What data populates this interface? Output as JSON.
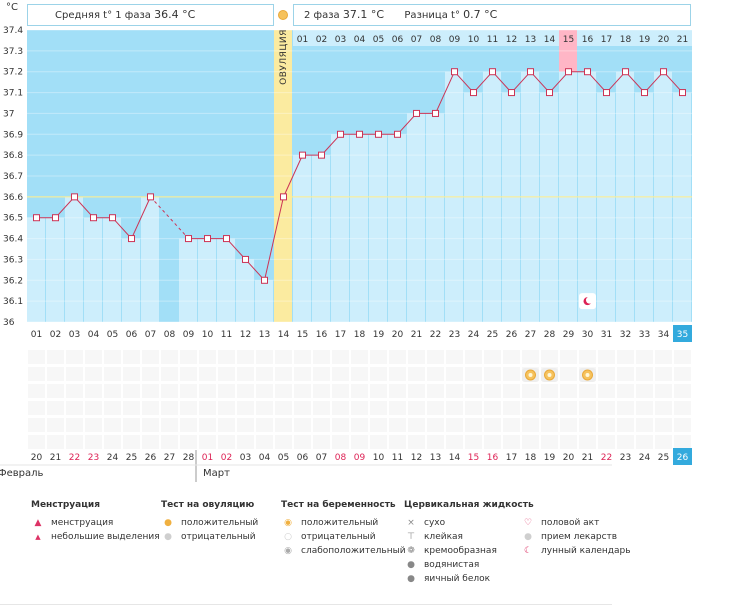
{
  "header": {
    "celsius": "°C",
    "phase1_label": "Средняя t° 1 фаза",
    "phase1_value": "36.4 °C",
    "phase2_label": "2 фаза",
    "phase2_value": "37.1 °C",
    "diff_label": "Разница t°",
    "diff_value": "0.7 °C",
    "ovulation_label": "ОВУЛЯЦИЯ"
  },
  "months": {
    "first": "Февраль",
    "second": "Март"
  },
  "colors": {
    "bar": "#cdeefc",
    "bg": "#a2dff7",
    "hot": "#ffb6c6",
    "ovul": "#fbeba0",
    "line": "#cc3355",
    "coverline": "#ffee88",
    "accent": "#33aadd"
  },
  "chart_data": {
    "type": "line",
    "ylim": [
      36.0,
      37.4
    ],
    "yticks": [
      "37.4",
      "37.3",
      "37.2",
      "37.1",
      "37",
      "36.9",
      "36.8",
      "36.7",
      "36.6",
      "36.5",
      "36.4",
      "36.3",
      "36.2",
      "36.1",
      "36"
    ],
    "cover_line": 36.6,
    "cycle_days": [
      "01",
      "02",
      "03",
      "04",
      "05",
      "06",
      "07",
      "08",
      "09",
      "10",
      "11",
      "12",
      "13",
      "14",
      "15",
      "16",
      "17",
      "18",
      "19",
      "20",
      "21",
      "22",
      "23",
      "24",
      "25",
      "26",
      "27",
      "28",
      "29",
      "30",
      "31",
      "32",
      "33",
      "34",
      "35"
    ],
    "temperatures": [
      36.5,
      36.5,
      36.6,
      36.5,
      36.5,
      36.4,
      36.6,
      null,
      36.4,
      36.4,
      36.4,
      36.3,
      36.2,
      36.6,
      36.8,
      36.8,
      36.9,
      36.9,
      36.9,
      36.9,
      37.0,
      37.0,
      37.2,
      37.1,
      37.2,
      37.1,
      37.2,
      37.1,
      37.2,
      37.2,
      37.1,
      37.2,
      37.1,
      37.2,
      37.1
    ],
    "ovulation_day": "14",
    "phase2_days": [
      "01",
      "02",
      "03",
      "04",
      "05",
      "06",
      "07",
      "08",
      "09",
      "10",
      "11",
      "12",
      "13",
      "14",
      "15",
      "16",
      "17",
      "18",
      "19",
      "20",
      "21"
    ],
    "highlight_phase2_day": "15",
    "dates": [
      "20",
      "21",
      "22",
      "23",
      "24",
      "25",
      "26",
      "27",
      "28",
      "01",
      "02",
      "03",
      "04",
      "05",
      "06",
      "07",
      "08",
      "09",
      "10",
      "11",
      "12",
      "13",
      "14",
      "15",
      "16",
      "17",
      "18",
      "19",
      "20",
      "21",
      "22",
      "23",
      "24",
      "25",
      "26"
    ],
    "red_dates": [
      "22",
      "23",
      "01",
      "02",
      "08",
      "09",
      "15",
      "16",
      "22",
      "23"
    ],
    "current_day": "35",
    "current_date": "26"
  },
  "legend": {
    "menstruation": {
      "title": "Менструация",
      "items": [
        "менструация",
        "небольшие выделения"
      ]
    },
    "ovulation_test": {
      "title": "Тест на овуляцию",
      "items": [
        "положительный",
        "отрицательный"
      ]
    },
    "pregnancy_test": {
      "title": "Тест на беременность",
      "items": [
        "положительный",
        "отрицательный",
        "слабоположительный"
      ]
    },
    "cervical": {
      "title": "Цервикальная жидкость",
      "items": [
        "сухо",
        "клейкая",
        "кремообразная",
        "водянистая",
        "яичный белок"
      ]
    },
    "other": {
      "items": [
        "половой акт",
        "прием лекарств",
        "лунный календарь"
      ]
    }
  }
}
